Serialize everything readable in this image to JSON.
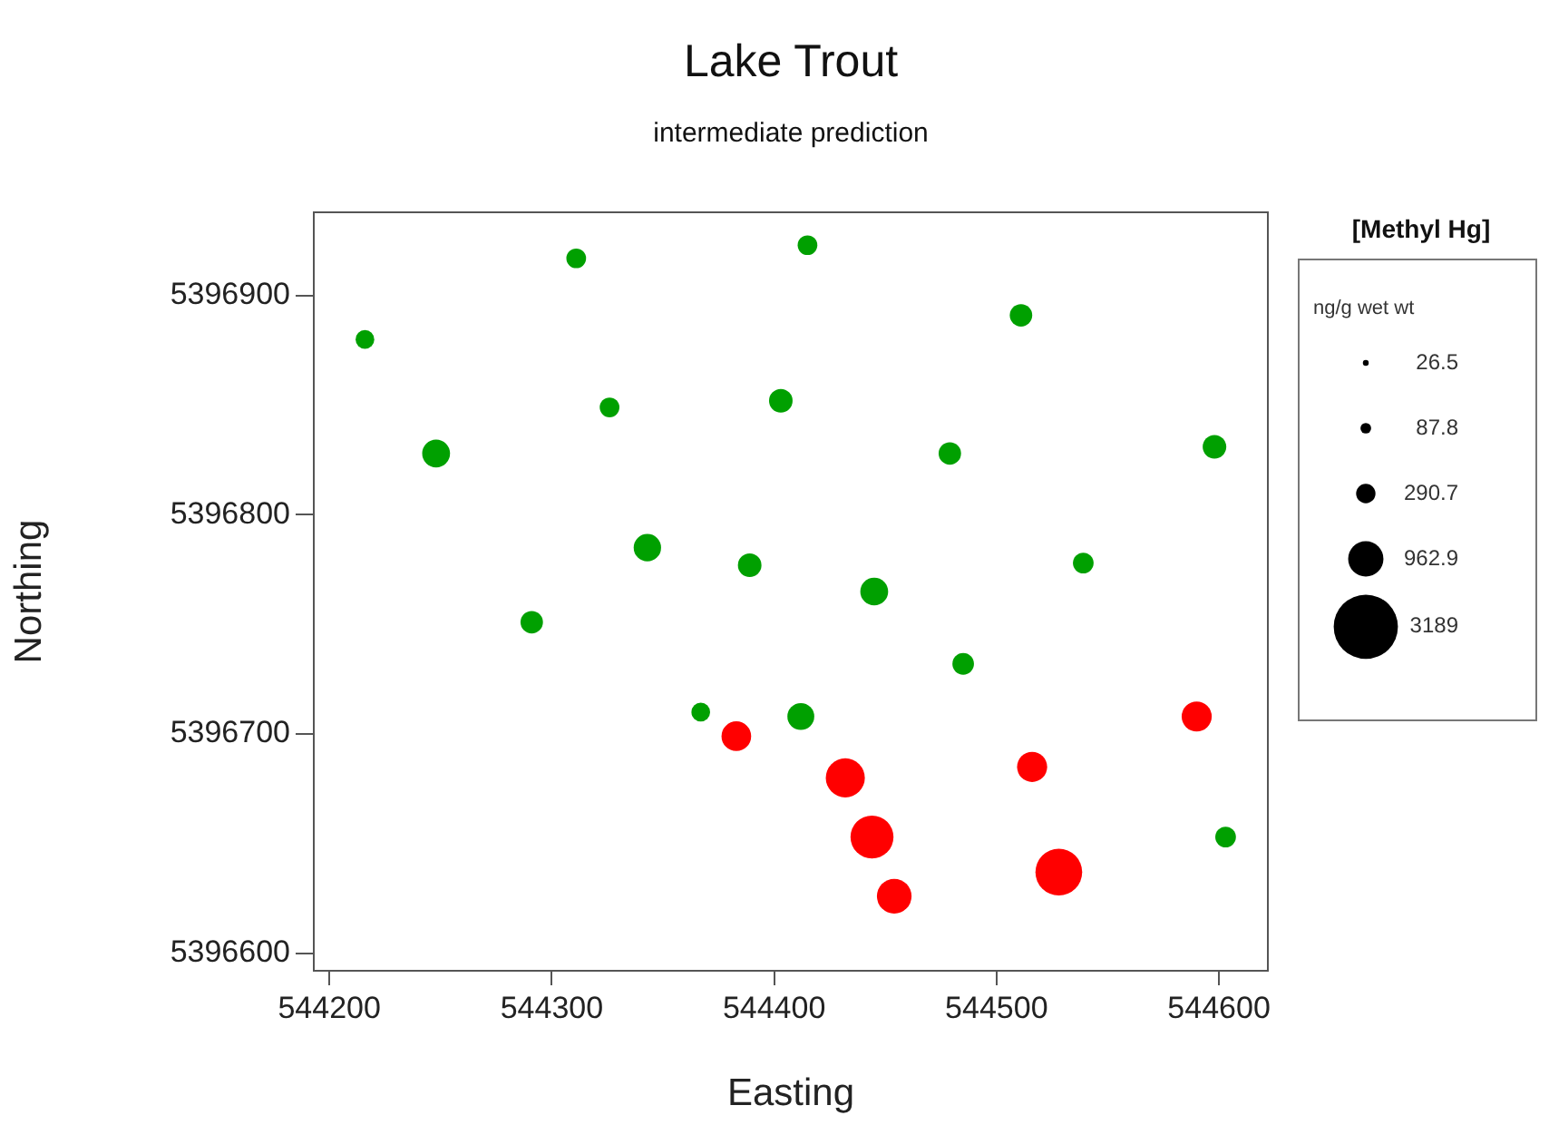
{
  "chart_data": {
    "type": "bubble",
    "title": "Lake Trout",
    "subtitle": "intermediate prediction",
    "xlabel": "Easting",
    "ylabel": "Northing",
    "legend_title": "[Methyl Hg]",
    "annotations": [
      "ng/g wet wt"
    ],
    "xlim": [
      544193,
      544622
    ],
    "xticks": [
      544200,
      544300,
      544400,
      544500,
      544600
    ],
    "ylim": [
      5396592,
      5396938
    ],
    "yticks": [
      5396600,
      5396700,
      5396800,
      5396900
    ],
    "grid": false,
    "size_legend": [
      26.5,
      87.8,
      290.7,
      962.9,
      3189
    ],
    "series": [
      {
        "x": [
          544216,
          544311,
          544415,
          544511,
          544326,
          544403,
          544248,
          544479,
          544598,
          544343,
          544389,
          544539,
          544291,
          544445,
          544485,
          544367,
          544412,
          544603,
          544383,
          544432,
          544444,
          544454,
          544516,
          544590,
          544528
        ],
        "values": [
          5396880,
          5396917,
          5396923,
          5396891,
          5396849,
          5396852,
          5396828,
          5396828,
          5396831,
          5396785,
          5396777,
          5396778,
          5396751,
          5396765,
          5396732,
          5396710,
          5396708,
          5396653,
          5396699,
          5396680,
          5396653,
          5396626,
          5396685,
          5396708,
          5396637
        ],
        "sizes": [
          270,
          300,
          300,
          390,
          300,
          430,
          600,
          390,
          430,
          580,
          430,
          330,
          390,
          600,
          360,
          270,
          560,
          330,
          680,
          1180,
          1430,
          930,
          700,
          700,
          1690
        ],
        "colors": [
          "#00a000",
          "#00a000",
          "#00a000",
          "#00a000",
          "#00a000",
          "#00a000",
          "#00a000",
          "#00a000",
          "#00a000",
          "#00a000",
          "#00a000",
          "#00a000",
          "#00a000",
          "#00a000",
          "#00a000",
          "#00a000",
          "#00a000",
          "#00a000",
          "#ff0000",
          "#ff0000",
          "#ff0000",
          "#ff0000",
          "#ff0000",
          "#ff0000",
          "#ff0000"
        ]
      }
    ]
  }
}
